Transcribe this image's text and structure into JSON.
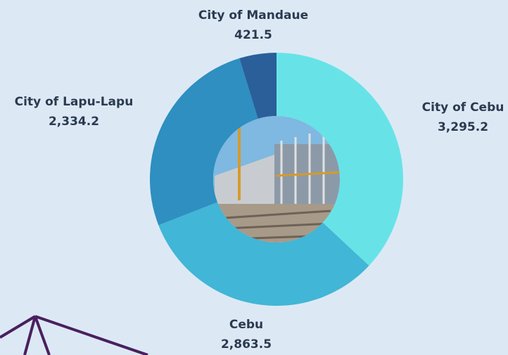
{
  "chart_data": {
    "type": "donut",
    "categories": [
      "City of Cebu",
      "Cebu",
      "City of Lapu-Lapu",
      "City of Mandaue"
    ],
    "values": [
      3295.2,
      2863.5,
      2334.2,
      421.5
    ],
    "value_labels": [
      "3,295.2",
      "2,863.5",
      "2,334.2",
      "421.5"
    ],
    "colors": [
      "#67e3e8",
      "#41b6d6",
      "#2e8fc0",
      "#2a5f9a"
    ]
  }
}
